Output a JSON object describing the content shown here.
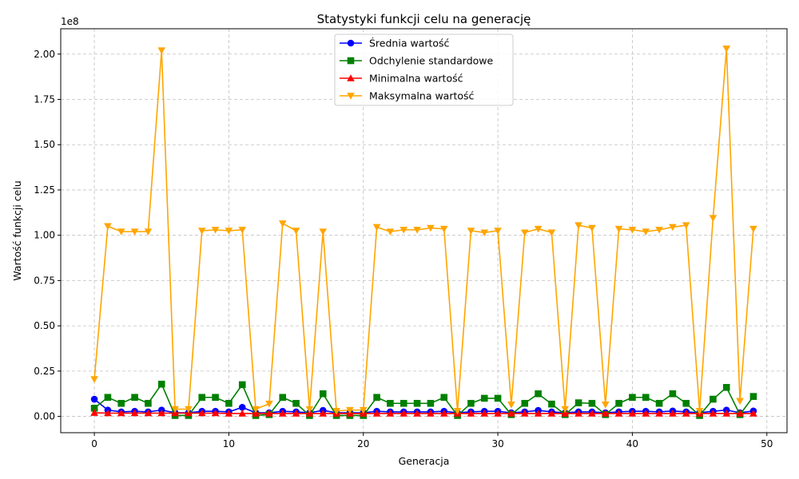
{
  "chart_data": {
    "type": "line",
    "title": "Statystyki funkcji celu na generację",
    "xlabel": "Generacja",
    "ylabel": "Wartość funkcji celu",
    "y_multiplier": "1e8",
    "xlim": [
      -2.5,
      51.5
    ],
    "ylim": [
      -0.09,
      2.14
    ],
    "xticks": [
      0,
      10,
      20,
      30,
      40,
      50
    ],
    "yticks": [
      0.0,
      0.25,
      0.5,
      0.75,
      1.0,
      1.25,
      1.5,
      1.75,
      2.0
    ],
    "ytick_labels": [
      "0.00",
      "0.25",
      "0.50",
      "0.75",
      "1.00",
      "1.25",
      "1.50",
      "1.75",
      "2.00"
    ],
    "grid": true,
    "legend_position": "top-center",
    "x": [
      0,
      1,
      2,
      3,
      4,
      5,
      6,
      7,
      8,
      9,
      10,
      11,
      12,
      13,
      14,
      15,
      16,
      17,
      18,
      19,
      20,
      21,
      22,
      23,
      24,
      25,
      26,
      27,
      28,
      29,
      30,
      31,
      32,
      33,
      34,
      35,
      36,
      37,
      38,
      39,
      40,
      41,
      42,
      43,
      44,
      45,
      46,
      47,
      48,
      49
    ],
    "series": [
      {
        "name": "Średnia wartość",
        "color": "#0000ff",
        "marker": "circle",
        "values": [
          0.095,
          0.035,
          0.025,
          0.028,
          0.025,
          0.035,
          0.02,
          0.02,
          0.028,
          0.028,
          0.025,
          0.05,
          0.02,
          0.02,
          0.028,
          0.025,
          0.02,
          0.033,
          0.02,
          0.02,
          0.02,
          0.028,
          0.025,
          0.025,
          0.025,
          0.025,
          0.028,
          0.02,
          0.025,
          0.028,
          0.028,
          0.02,
          0.025,
          0.033,
          0.025,
          0.02,
          0.025,
          0.025,
          0.02,
          0.025,
          0.028,
          0.028,
          0.025,
          0.03,
          0.025,
          0.02,
          0.028,
          0.035,
          0.02,
          0.03
        ]
      },
      {
        "name": "Odchylenie standardowe",
        "color": "#008000",
        "marker": "square",
        "values": [
          0.045,
          0.105,
          0.072,
          0.105,
          0.072,
          0.178,
          0.005,
          0.005,
          0.105,
          0.105,
          0.072,
          0.175,
          0.005,
          0.01,
          0.105,
          0.072,
          0.005,
          0.125,
          0.005,
          0.005,
          0.005,
          0.105,
          0.072,
          0.072,
          0.072,
          0.072,
          0.105,
          0.005,
          0.072,
          0.1,
          0.1,
          0.01,
          0.072,
          0.125,
          0.068,
          0.01,
          0.075,
          0.072,
          0.01,
          0.072,
          0.105,
          0.105,
          0.072,
          0.125,
          0.072,
          0.005,
          0.095,
          0.16,
          0.01,
          0.11
        ]
      },
      {
        "name": "Minimalna wartość",
        "color": "#ff0000",
        "marker": "triangle-up",
        "values": [
          0.02,
          0.018,
          0.018,
          0.018,
          0.018,
          0.018,
          0.018,
          0.018,
          0.018,
          0.018,
          0.016,
          0.016,
          0.016,
          0.016,
          0.016,
          0.016,
          0.016,
          0.016,
          0.016,
          0.016,
          0.016,
          0.016,
          0.016,
          0.016,
          0.016,
          0.016,
          0.016,
          0.016,
          0.016,
          0.016,
          0.016,
          0.016,
          0.016,
          0.016,
          0.016,
          0.016,
          0.016,
          0.016,
          0.016,
          0.016,
          0.016,
          0.016,
          0.016,
          0.016,
          0.016,
          0.016,
          0.016,
          0.016,
          0.016,
          0.016
        ]
      },
      {
        "name": "Maksymalna wartość",
        "color": "#ffa500",
        "marker": "triangle-down",
        "values": [
          0.205,
          1.05,
          1.02,
          1.02,
          1.02,
          2.02,
          0.04,
          0.04,
          1.025,
          1.03,
          1.025,
          1.03,
          0.04,
          0.07,
          1.065,
          1.025,
          0.04,
          1.02,
          0.03,
          0.035,
          0.035,
          1.045,
          1.02,
          1.03,
          1.03,
          1.04,
          1.035,
          0.03,
          1.025,
          1.015,
          1.025,
          0.065,
          1.015,
          1.035,
          1.015,
          0.04,
          1.055,
          1.04,
          0.065,
          1.035,
          1.03,
          1.02,
          1.03,
          1.045,
          1.055,
          0.03,
          1.095,
          2.03,
          0.085,
          1.035
        ]
      }
    ]
  }
}
